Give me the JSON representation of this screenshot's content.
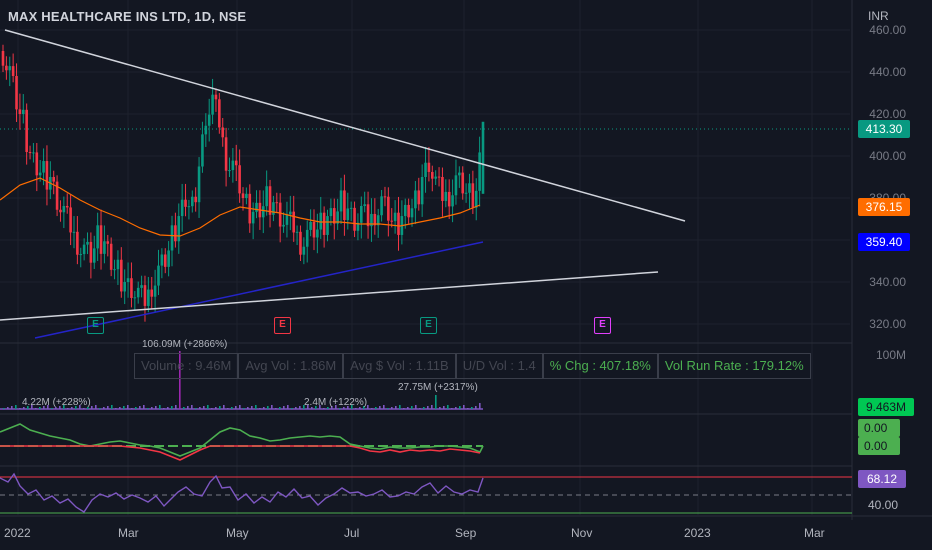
{
  "header": {
    "title": "MAX HEALTHCARE INS LTD, 1D, NSE",
    "currency": "INR"
  },
  "price_axis": [
    "460.00",
    "440.00",
    "420.00",
    "400.00",
    "380.00",
    "340.00",
    "320.00"
  ],
  "tags": {
    "last": "413.30",
    "last_color": "#089981",
    "ma": "376.15",
    "ma_color": "#ff6d00",
    "trend": "359.40",
    "trend_color": "#0000ff"
  },
  "volume": {
    "axis": "100M",
    "tag": "9.463M",
    "note_peak": "106.09M (+2866%)",
    "note_left": "4.22M (+228%)",
    "note_mid": "2.4M (+122%)",
    "note_right": "27.75M (+2317%)"
  },
  "stats_box": {
    "volume": "Volume : 9.46M",
    "avg_vol": "Avg Vol : 1.86M",
    "avg_dollar": "Avg $ Vol : 1.11B",
    "ud_vol": "U/D Vol : 1.4",
    "pct_chg": "% Chg : 407.18%",
    "run_rate": "Vol Run Rate : 179.12%"
  },
  "osc": {
    "tag1": "0.00",
    "tag2": "0.00"
  },
  "rsi": {
    "tag": "68.12",
    "axis": "40.00"
  },
  "earnings": [
    "E",
    "E",
    "E",
    "E"
  ],
  "time_axis": [
    "2022",
    "Mar",
    "May",
    "Jul",
    "Sep",
    "Nov",
    "2023",
    "Mar"
  ],
  "chart_data": {
    "type": "candlestick",
    "title": "MAX HEALTHCARE INS LTD, 1D, NSE",
    "ylim": [
      315,
      465
    ],
    "last_price": 413.3,
    "ma_value": 376.15,
    "trendline_value": 359.4,
    "close_series": [
      450,
      440,
      425,
      415,
      400,
      395,
      392,
      390,
      380,
      372,
      365,
      360,
      355,
      352,
      360,
      358,
      350,
      345,
      340,
      338,
      333,
      330,
      340,
      345,
      350,
      360,
      370,
      380,
      375,
      395,
      420,
      425,
      415,
      400,
      395,
      385,
      375,
      372,
      375,
      380,
      378,
      372,
      368,
      365,
      360,
      362,
      364,
      366,
      370,
      372,
      378,
      375,
      370,
      372,
      368,
      374,
      378,
      372,
      366,
      370,
      375,
      378,
      390,
      398,
      386,
      380,
      383,
      388,
      385,
      380,
      382,
      413
    ]
  }
}
